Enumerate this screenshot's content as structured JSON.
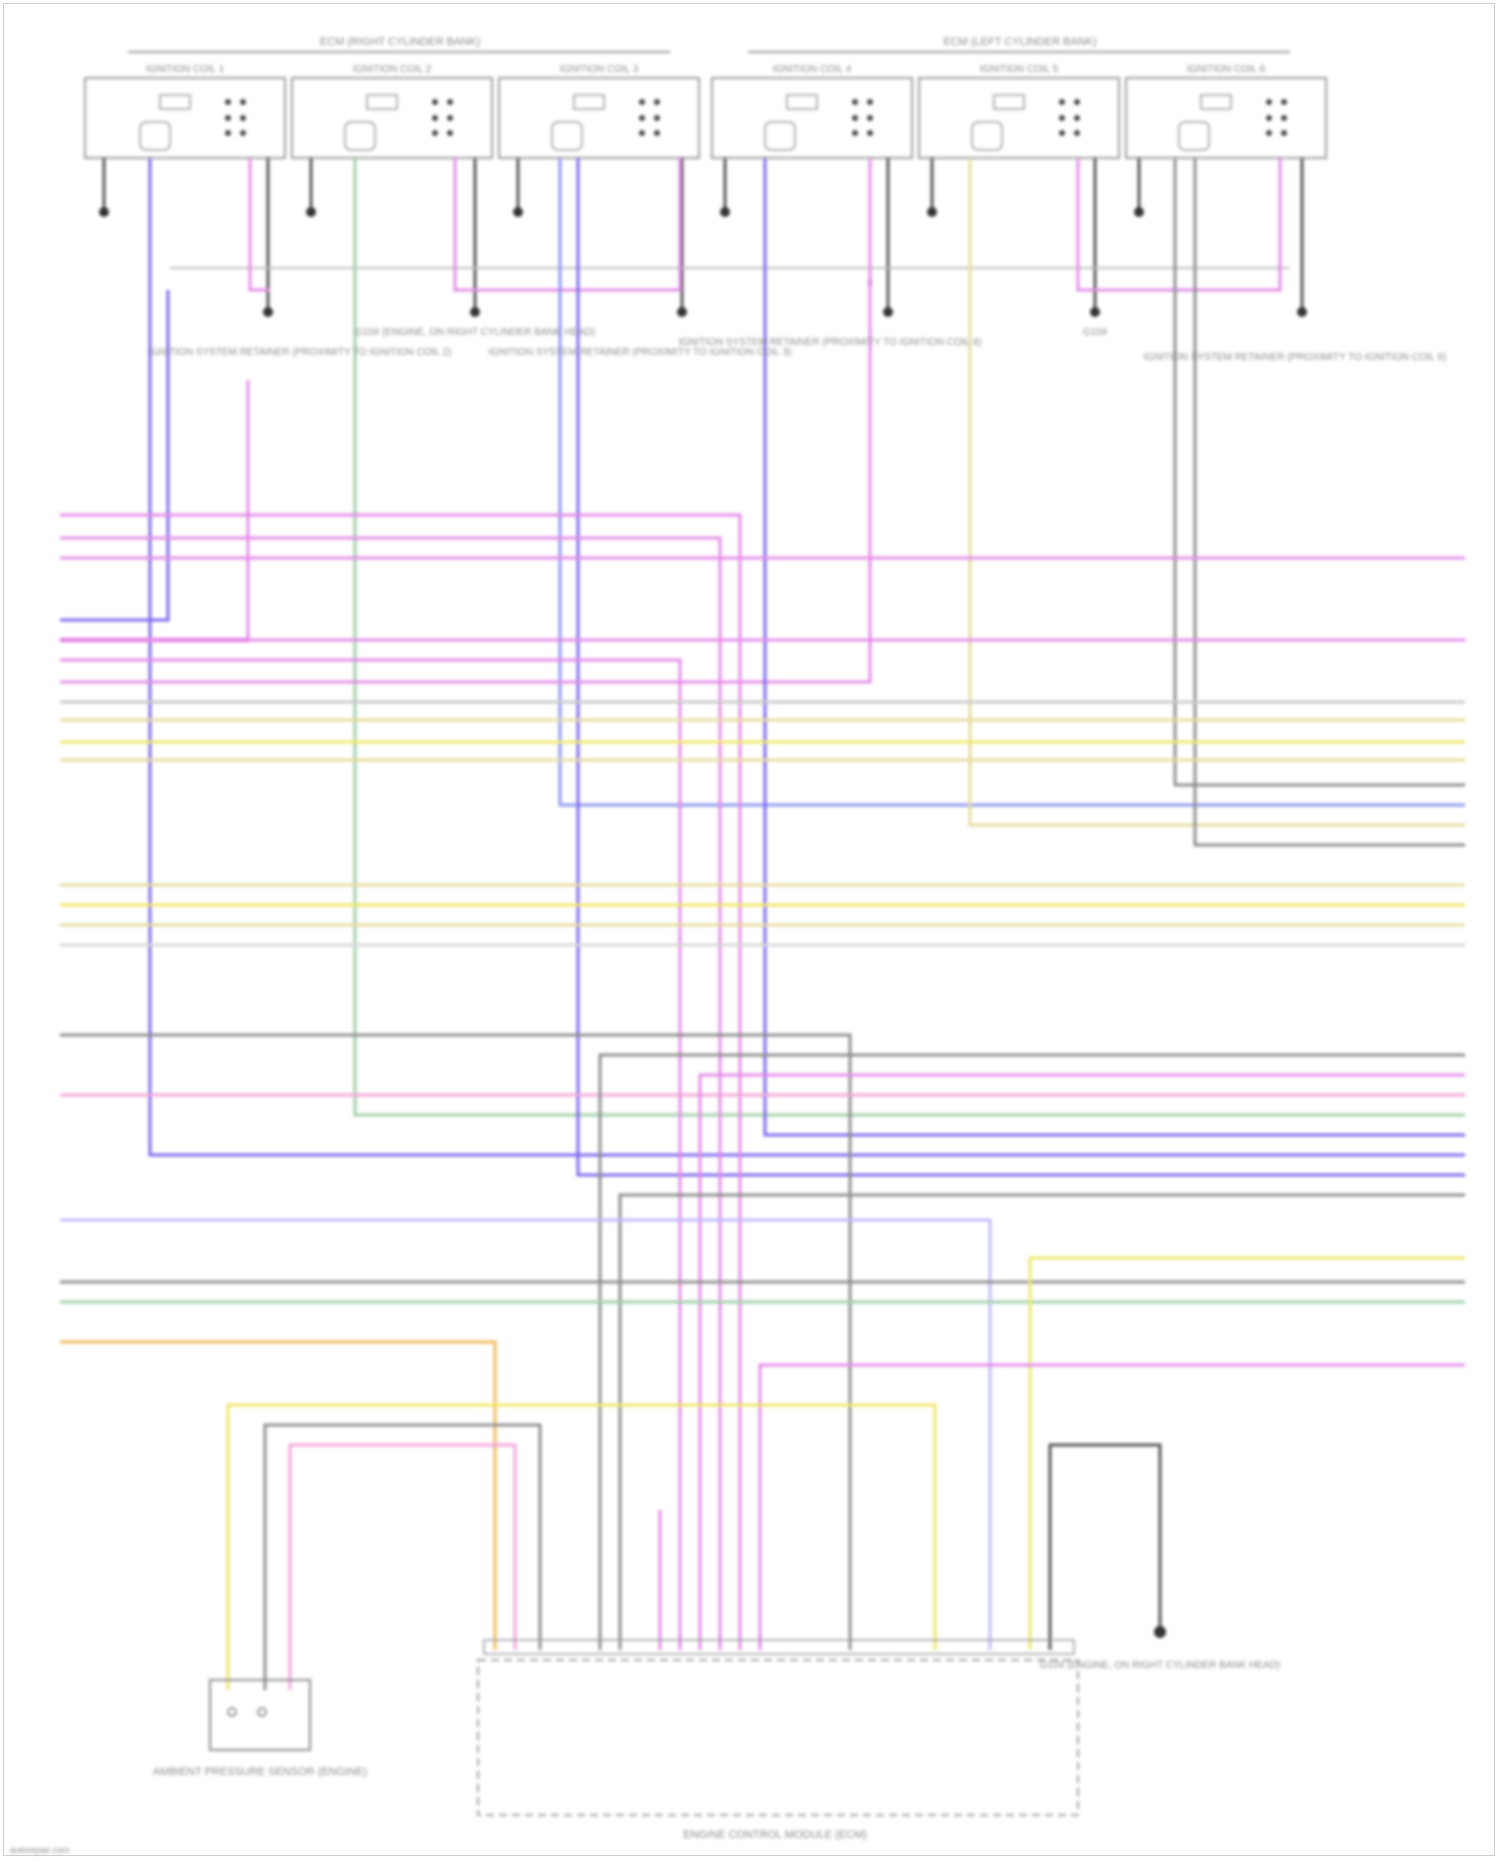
{
  "header": {
    "bank_left_label": "ECM (RIGHT CYLINDER BANK)",
    "bank_right_label": "ECM (LEFT CYLINDER BANK)",
    "coils_left": [
      "IGNITION COIL 1",
      "IGNITION COIL 2",
      "IGNITION COIL 3"
    ],
    "coils_right": [
      "IGNITION COIL 4",
      "IGNITION COIL 5",
      "IGNITION COIL 6"
    ]
  },
  "callouts": {
    "left_splice_text": "IGNITION SYSTEM RETAINER (PROXIMITY TO IGNITION COIL 2)",
    "left_ground_text": "G104 (ENGINE, ON RIGHT CYLINDER BANK HEAD)",
    "center_splice_text": "IGNITION SYSTEM RETAINER (PROXIMITY TO IGNITION COIL 3)",
    "center_right_text": "IGNITION SYSTEM RETAINER (PROXIMITY TO IGNITION COIL 4)",
    "right_ground_text": "G104",
    "right_splice_text": "IGNITION SYSTEM RETAINER (PROXIMITY TO IGNITION COIL 6)"
  },
  "components": {
    "sensor_label": "AMBIENT PRESSURE SENSOR (ENGINE)",
    "module_label": "ENGINE CONTROL MODULE (ECM)",
    "bottom_ground_label": "G104 (ENGINE, ON RIGHT CYLINDER BANK HEAD)"
  },
  "footer": {
    "watermark": "autorepair.com"
  },
  "colors": {
    "violet": "#7b68ee",
    "magenta": "#e48be8",
    "pink": "#f2a6d8",
    "green": "#9fd0a8",
    "yellow": "#f0e86a",
    "tan": "#e6dca0",
    "grey": "#8e8e8e",
    "orange": "#f5b85a",
    "blue": "#8f95f0",
    "black": "#333333"
  }
}
